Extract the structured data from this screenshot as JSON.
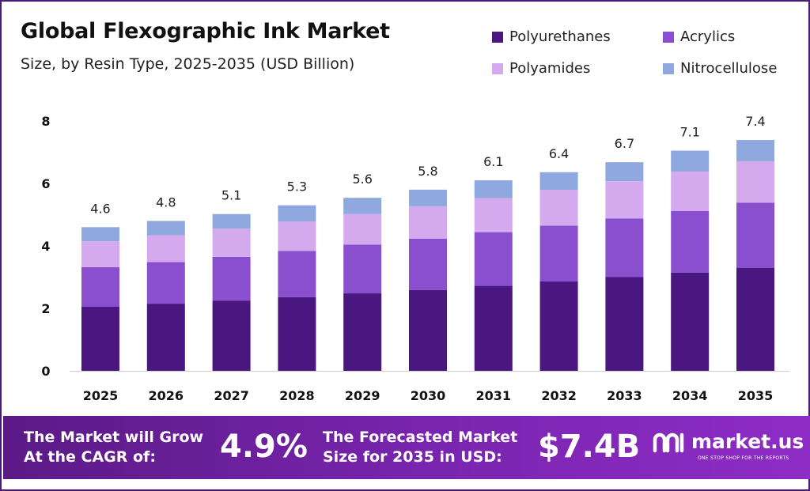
{
  "colors": {
    "Polyurethanes": "#4a1680",
    "Acrylics": "#8a4fcf",
    "Polyamides": "#d4a9ee",
    "Nitrocellulose": "#8fa8e0",
    "banner": "#6e22a0"
  },
  "chart_data": {
    "type": "bar",
    "stacked": true,
    "title": "Global Flexographic Ink Market",
    "subtitle": "Size, by Resin Type, 2025-2035 (USD Billion)",
    "categories": [
      "2025",
      "2026",
      "2027",
      "2028",
      "2029",
      "2030",
      "2031",
      "2032",
      "2033",
      "2034",
      "2035"
    ],
    "series": [
      {
        "name": "Polyurethanes",
        "values": [
          2.05,
          2.15,
          2.25,
          2.36,
          2.48,
          2.59,
          2.72,
          2.86,
          3.0,
          3.14,
          3.3
        ]
      },
      {
        "name": "Acrylics",
        "values": [
          1.27,
          1.33,
          1.4,
          1.48,
          1.56,
          1.64,
          1.72,
          1.79,
          1.88,
          1.98,
          2.08
        ]
      },
      {
        "name": "Polyamides",
        "values": [
          0.83,
          0.86,
          0.9,
          0.94,
          0.98,
          1.04,
          1.09,
          1.14,
          1.19,
          1.26,
          1.33
        ]
      },
      {
        "name": "Nitrocellulose",
        "values": [
          0.45,
          0.46,
          0.47,
          0.52,
          0.52,
          0.53,
          0.57,
          0.57,
          0.61,
          0.67,
          0.68
        ]
      }
    ],
    "totals": [
      "4.6",
      "4.8",
      "5.1",
      "5.3",
      "5.6",
      "5.8",
      "6.1",
      "6.4",
      "6.7",
      "7.1",
      "7.4"
    ],
    "yticks": [
      "0",
      "2",
      "4",
      "6",
      "8"
    ],
    "ylim": [
      0,
      8
    ],
    "xlabel": "",
    "ylabel": "",
    "grid": false,
    "legend_position": "top-right"
  },
  "banner": {
    "cagr_label_line1": "The Market will Grow",
    "cagr_label_line2": "At the CAGR of:",
    "cagr_value": "4.9%",
    "forecast_label_line1": "The Forecasted Market",
    "forecast_label_line2": "Size for 2035 in USD:",
    "forecast_value": "$7.4B",
    "logo_name": "market.us",
    "logo_tagline": "ONE STOP SHOP FOR THE REPORTS"
  }
}
